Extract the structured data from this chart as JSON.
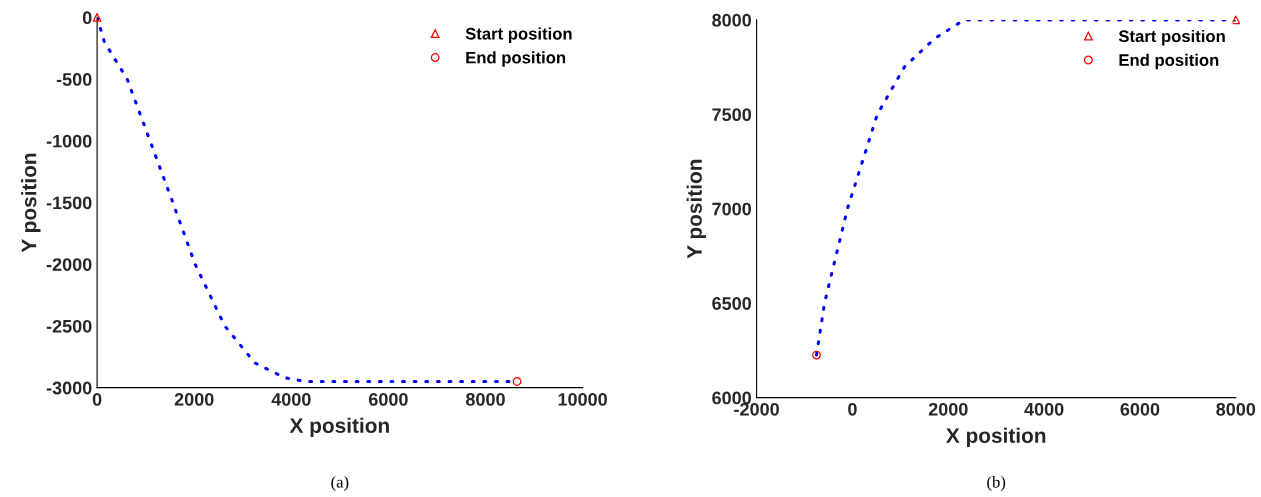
{
  "chart_data": [
    {
      "type": "line",
      "xlabel": "X position",
      "ylabel": "Y position",
      "xlim": [
        0,
        10000
      ],
      "ylim": [
        -3000,
        0
      ],
      "xticks": [
        0,
        2000,
        4000,
        6000,
        8000,
        10000
      ],
      "yticks": [
        -3000,
        -2500,
        -2000,
        -1500,
        -1000,
        -500,
        0
      ],
      "grid": false,
      "legend": "top right",
      "annotations": [
        "(a)"
      ],
      "series": [
        {
          "color": "#0000ff",
          "line_style": "dotted",
          "marker": "none",
          "x": [
            0,
            150,
            620,
            1090,
            1560,
            2020,
            2630,
            3250,
            3870,
            4300,
            6000,
            8650
          ],
          "values": [
            0,
            -200,
            -500,
            -1000,
            -1500,
            -2000,
            -2500,
            -2800,
            -2920,
            -2950,
            -2950,
            -2950
          ]
        },
        {
          "type": "scatter",
          "name": "Start position",
          "color": "#ff0000",
          "marker": "triangle",
          "x": [
            0
          ],
          "values": [
            0
          ]
        },
        {
          "type": "scatter",
          "name": "End position",
          "color": "#ff0000",
          "marker": "circle",
          "x": [
            8650
          ],
          "values": [
            -2950
          ]
        }
      ]
    },
    {
      "type": "line",
      "xlabel": "X position",
      "ylabel": "Y position",
      "xlim": [
        -2000,
        8000
      ],
      "ylim": [
        6000,
        8000
      ],
      "xticks": [
        -2000,
        0,
        2000,
        4000,
        6000,
        8000
      ],
      "yticks": [
        6000,
        6500,
        7000,
        7500,
        8000
      ],
      "grid": false,
      "legend": "top right",
      "annotations": [
        "(b)"
      ],
      "series": [
        {
          "color": "#0000ff",
          "line_style": "dotted",
          "marker": "none",
          "x": [
            -750,
            -583,
            -104,
            520,
            1083,
            1708,
            2333,
            5000,
            8000
          ],
          "values": [
            6225,
            6500,
            7000,
            7500,
            7750,
            7900,
            8000,
            8000,
            8000
          ]
        },
        {
          "type": "scatter",
          "name": "Start position",
          "color": "#ff0000",
          "marker": "triangle",
          "x": [
            8000
          ],
          "values": [
            8000
          ]
        },
        {
          "type": "scatter",
          "name": "End position",
          "color": "#ff0000",
          "marker": "circle",
          "x": [
            -750
          ],
          "values": [
            6225
          ]
        }
      ]
    }
  ]
}
